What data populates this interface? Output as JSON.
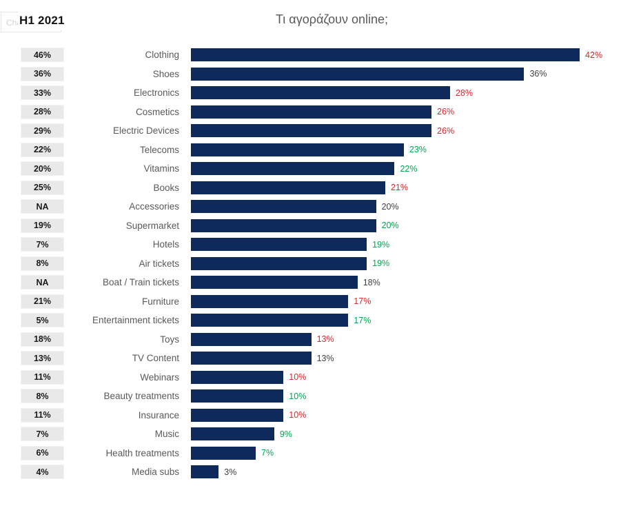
{
  "header": {
    "placeholder_text": "Chart Title",
    "period_label": "H1 2021",
    "title": "Τι αγοράζουν online;"
  },
  "colors": {
    "bar": "#0e2a5c",
    "up": "#00a550",
    "down": "#e0242c",
    "flat": "#404040",
    "category_text": "#595959",
    "previous_badge_bg": "#e9e9e9",
    "title_text": "#595959"
  },
  "chart_data": {
    "type": "bar",
    "orientation": "horizontal",
    "title": "Τι αγοράζουν online;",
    "xlim": [
      0,
      45
    ],
    "grid": false,
    "legend": false,
    "previous_column_title": "H1 2021",
    "rows": [
      {
        "category": "Clothing",
        "previous": "46%",
        "value": 42,
        "value_label": "42%",
        "trend": "down"
      },
      {
        "category": "Shoes",
        "previous": "36%",
        "value": 36,
        "value_label": "36%",
        "trend": "flat"
      },
      {
        "category": "Electronics",
        "previous": "33%",
        "value": 28,
        "value_label": "28%",
        "trend": "down"
      },
      {
        "category": "Cosmetics",
        "previous": "28%",
        "value": 26,
        "value_label": "26%",
        "trend": "down"
      },
      {
        "category": "Electric Devices",
        "previous": "29%",
        "value": 26,
        "value_label": "26%",
        "trend": "down"
      },
      {
        "category": "Telecoms",
        "previous": "22%",
        "value": 23,
        "value_label": "23%",
        "trend": "up"
      },
      {
        "category": "Vitamins",
        "previous": "20%",
        "value": 22,
        "value_label": "22%",
        "trend": "up"
      },
      {
        "category": "Books",
        "previous": "25%",
        "value": 21,
        "value_label": "21%",
        "trend": "down"
      },
      {
        "category": "Accessories",
        "previous": "NA",
        "value": 20,
        "value_label": "20%",
        "trend": "flat"
      },
      {
        "category": "Supermarket",
        "previous": "19%",
        "value": 20,
        "value_label": "20%",
        "trend": "up"
      },
      {
        "category": "Hotels",
        "previous": "7%",
        "value": 19,
        "value_label": "19%",
        "trend": "up"
      },
      {
        "category": "Air tickets",
        "previous": "8%",
        "value": 19,
        "value_label": "19%",
        "trend": "up"
      },
      {
        "category": "Boat / Train tickets",
        "previous": "NA",
        "value": 18,
        "value_label": "18%",
        "trend": "flat"
      },
      {
        "category": "Furniture",
        "previous": "21%",
        "value": 17,
        "value_label": "17%",
        "trend": "down"
      },
      {
        "category": "Entertainment tickets",
        "previous": "5%",
        "value": 17,
        "value_label": "17%",
        "trend": "up"
      },
      {
        "category": "Toys",
        "previous": "18%",
        "value": 13,
        "value_label": "13%",
        "trend": "down"
      },
      {
        "category": "TV Content",
        "previous": "13%",
        "value": 13,
        "value_label": "13%",
        "trend": "flat"
      },
      {
        "category": "Webinars",
        "previous": "11%",
        "value": 10,
        "value_label": "10%",
        "trend": "down"
      },
      {
        "category": "Beauty treatments",
        "previous": "8%",
        "value": 10,
        "value_label": "10%",
        "trend": "up"
      },
      {
        "category": "Insurance",
        "previous": "11%",
        "value": 10,
        "value_label": "10%",
        "trend": "down"
      },
      {
        "category": "Music",
        "previous": "7%",
        "value": 9,
        "value_label": "9%",
        "trend": "up"
      },
      {
        "category": "Health treatments",
        "previous": "6%",
        "value": 7,
        "value_label": "7%",
        "trend": "up"
      },
      {
        "category": "Media subs",
        "previous": "4%",
        "value": 3,
        "value_label": "3%",
        "trend": "flat"
      }
    ]
  }
}
